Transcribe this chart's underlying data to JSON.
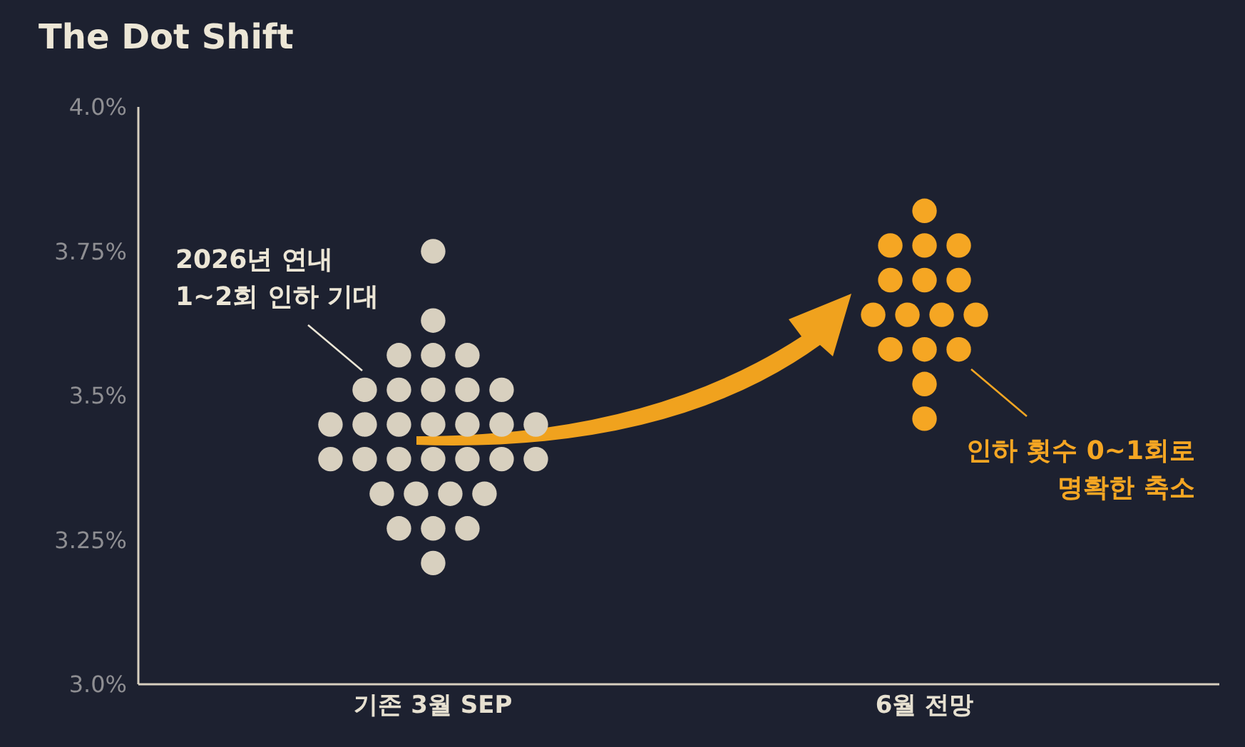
{
  "chart_data": {
    "type": "scatter",
    "title": "The Dot Shift",
    "categories": [
      "기존 3월 SEP",
      "6월 전망"
    ],
    "series": [
      {
        "color": "#d8d0bf",
        "x": [
          "기존 3월 SEP",
          "기존 3월 SEP",
          "기존 3월 SEP",
          "기존 3월 SEP",
          "기존 3월 SEP",
          "기존 3월 SEP",
          "기존 3월 SEP",
          "기존 3월 SEP",
          "기존 3월 SEP",
          "기존 3월 SEP",
          "기존 3월 SEP",
          "기존 3월 SEP",
          "기존 3월 SEP",
          "기존 3월 SEP",
          "기존 3월 SEP",
          "기존 3월 SEP",
          "기존 3월 SEP",
          "기존 3월 SEP",
          "기존 3월 SEP",
          "기존 3월 SEP",
          "기존 3월 SEP",
          "기존 3월 SEP",
          "기존 3월 SEP",
          "기존 3월 SEP",
          "기존 3월 SEP",
          "기존 3월 SEP",
          "기존 3월 SEP",
          "기존 3월 SEP",
          "기존 3월 SEP",
          "기존 3월 SEP",
          "기존 3월 SEP",
          "기존 3월 SEP"
        ],
        "values": [
          3.75,
          3.63,
          3.57,
          3.57,
          3.57,
          3.51,
          3.51,
          3.51,
          3.51,
          3.51,
          3.45,
          3.45,
          3.45,
          3.45,
          3.45,
          3.45,
          3.45,
          3.39,
          3.39,
          3.39,
          3.39,
          3.39,
          3.39,
          3.39,
          3.33,
          3.33,
          3.33,
          3.33,
          3.27,
          3.27,
          3.27,
          3.21
        ]
      },
      {
        "color": "#f5a623",
        "x": [
          "6월 전망",
          "6월 전망",
          "6월 전망",
          "6월 전망",
          "6월 전망",
          "6월 전망",
          "6월 전망",
          "6월 전망",
          "6월 전망",
          "6월 전망",
          "6월 전망",
          "6월 전망",
          "6월 전망",
          "6월 전망",
          "6월 전망",
          "6월 전망"
        ],
        "values": [
          3.82,
          3.76,
          3.76,
          3.76,
          3.7,
          3.7,
          3.7,
          3.64,
          3.64,
          3.64,
          3.64,
          3.58,
          3.58,
          3.58,
          3.52,
          3.46
        ]
      }
    ],
    "ylim": [
      3.0,
      4.0
    ],
    "yticks": [
      {
        "value": 3.0,
        "label": "3.0%"
      },
      {
        "value": 3.25,
        "label": "3.25%"
      },
      {
        "value": 3.5,
        "label": "3.5%"
      },
      {
        "value": 3.75,
        "label": "3.75%"
      },
      {
        "value": 4.0,
        "label": "4.0%"
      }
    ],
    "marker": "circle",
    "annotations": [
      "2026년 연내\n1~2회 인하 기대",
      "인하 횟수 0~1회로\n명확한 축소"
    ]
  }
}
